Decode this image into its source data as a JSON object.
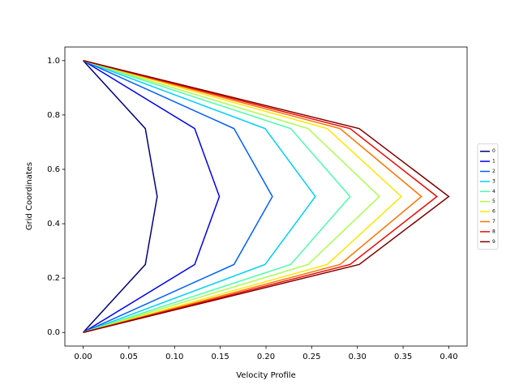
{
  "chart_data": {
    "type": "line",
    "xlabel": "Velocity Profile",
    "ylabel": "Grid Coordinates",
    "y": [
      0,
      0.25,
      0.5,
      0.75,
      1
    ],
    "series": [
      {
        "name": "0",
        "color": "#00007f",
        "values": [
          0,
          0.068,
          0.081,
          0.068,
          0
        ]
      },
      {
        "name": "1",
        "color": "#0000f1",
        "values": [
          0,
          0.122,
          0.149,
          0.122,
          0
        ]
      },
      {
        "name": "2",
        "color": "#0060ff",
        "values": [
          0,
          0.165,
          0.207,
          0.165,
          0
        ]
      },
      {
        "name": "3",
        "color": "#00d0ff",
        "values": [
          0,
          0.199,
          0.254,
          0.199,
          0
        ]
      },
      {
        "name": "4",
        "color": "#4dffaa",
        "values": [
          0,
          0.227,
          0.292,
          0.227,
          0
        ]
      },
      {
        "name": "5",
        "color": "#aaff4d",
        "values": [
          0,
          0.246,
          0.324,
          0.246,
          0
        ]
      },
      {
        "name": "6",
        "color": "#ffe500",
        "values": [
          0,
          0.267,
          0.348,
          0.267,
          0
        ]
      },
      {
        "name": "7",
        "color": "#ff7200",
        "values": [
          0,
          0.281,
          0.37,
          0.281,
          0
        ]
      },
      {
        "name": "8",
        "color": "#f10800",
        "values": [
          0,
          0.292,
          0.387,
          0.292,
          0
        ]
      },
      {
        "name": "9",
        "color": "#800000",
        "values": [
          0,
          0.302,
          0.4,
          0.302,
          0
        ]
      }
    ],
    "xlim": [
      -0.02,
      0.42
    ],
    "xticks": [
      {
        "value": 0,
        "label": "0.00"
      },
      0.05,
      {
        "value": 0.1,
        "label": "0.10"
      },
      0.15,
      {
        "value": 0.2,
        "label": "0.20"
      },
      0.25,
      {
        "value": 0.3,
        "label": "0.30"
      },
      0.35,
      {
        "value": 0.4,
        "label": "0.40"
      }
    ],
    "ylim": [
      -0.05,
      1.05
    ],
    "yticks": [
      {
        "value": 0,
        "label": "0.0"
      },
      0.2,
      0.4,
      0.6,
      0.8,
      {
        "value": 1,
        "label": "1.0"
      }
    ],
    "legend": "right"
  }
}
